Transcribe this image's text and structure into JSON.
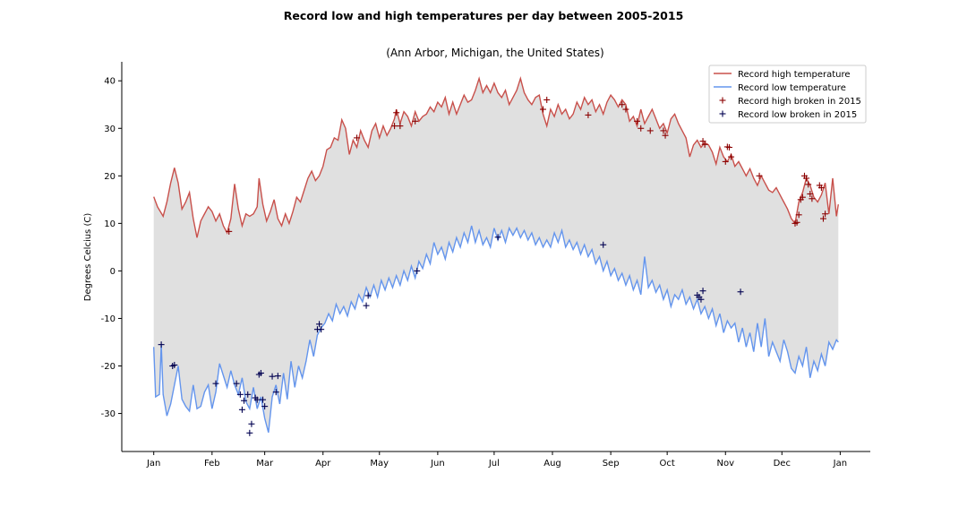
{
  "chart_data": {
    "type": "line",
    "title": "Record low and high temperatures per day between 2005-2015",
    "subtitle": "(Ann Arbor, Michigan, the United States)",
    "xlabel": "",
    "ylabel": "Degrees Celcius (C)",
    "ylim": [
      -38,
      44
    ],
    "yticks": [
      -30,
      -20,
      -10,
      0,
      10,
      20,
      30,
      40
    ],
    "xlim": [
      -17,
      381
    ],
    "xtick_positions": [
      0,
      31,
      59,
      90,
      120,
      151,
      181,
      212,
      243,
      273,
      304,
      334,
      365
    ],
    "xtick_labels": [
      "Jan",
      "Feb",
      "Mar",
      "Apr",
      "May",
      "Jun",
      "Jul",
      "Aug",
      "Sep",
      "Oct",
      "Nov",
      "Dec",
      "Jan"
    ],
    "legend": {
      "position": "top-right",
      "entries": [
        "Record high temperature",
        "Record low temperature",
        "Record high broken in 2015",
        "Record low broken in 2015"
      ]
    },
    "grid": false,
    "fill_between_color": "#e0e0e0",
    "colors": {
      "high": "#c8504b",
      "low": "#6495ed",
      "high_broken": "#8b0000",
      "low_broken": "#000050"
    },
    "high_series_keypoints": [
      [
        0,
        15.6
      ],
      [
        2,
        13.5
      ],
      [
        5,
        11.5
      ],
      [
        7,
        14.5
      ],
      [
        9,
        18.5
      ],
      [
        11,
        21.7
      ],
      [
        13,
        18.5
      ],
      [
        15,
        13
      ],
      [
        17,
        14.5
      ],
      [
        19,
        16.5
      ],
      [
        21,
        11
      ],
      [
        23,
        7
      ],
      [
        25,
        10.5
      ],
      [
        27,
        12
      ],
      [
        29,
        13.5
      ],
      [
        31,
        12.5
      ],
      [
        33,
        10.5
      ],
      [
        35,
        12
      ],
      [
        37,
        9.5
      ],
      [
        39,
        8
      ],
      [
        41,
        11
      ],
      [
        43,
        18.3
      ],
      [
        45,
        13
      ],
      [
        47,
        9.5
      ],
      [
        49,
        12
      ],
      [
        51,
        11.5
      ],
      [
        53,
        12
      ],
      [
        55,
        13.5
      ],
      [
        56,
        19.5
      ],
      [
        58,
        14
      ],
      [
        60,
        10.5
      ],
      [
        62,
        12.5
      ],
      [
        64,
        15
      ],
      [
        66,
        11
      ],
      [
        68,
        9.5
      ],
      [
        70,
        12
      ],
      [
        72,
        10
      ],
      [
        74,
        12.5
      ],
      [
        76,
        15.5
      ],
      [
        78,
        14.5
      ],
      [
        80,
        17
      ],
      [
        82,
        19.5
      ],
      [
        84,
        21
      ],
      [
        86,
        19
      ],
      [
        88,
        20
      ],
      [
        90,
        22
      ],
      [
        92,
        25.5
      ],
      [
        94,
        26
      ],
      [
        96,
        28
      ],
      [
        98,
        27.5
      ],
      [
        100,
        31.8
      ],
      [
        102,
        30
      ],
      [
        104,
        24.5
      ],
      [
        106,
        27.5
      ],
      [
        108,
        26
      ],
      [
        110,
        29.5
      ],
      [
        112,
        27.5
      ],
      [
        114,
        26
      ],
      [
        116,
        29.5
      ],
      [
        118,
        31
      ],
      [
        120,
        28
      ],
      [
        122,
        30.5
      ],
      [
        124,
        28.5
      ],
      [
        126,
        30
      ],
      [
        128,
        32
      ],
      [
        129,
        34
      ],
      [
        131,
        31
      ],
      [
        133,
        33.5
      ],
      [
        135,
        32.5
      ],
      [
        137,
        30.5
      ],
      [
        139,
        33.5
      ],
      [
        141,
        31.5
      ],
      [
        143,
        32.5
      ],
      [
        145,
        33
      ],
      [
        147,
        34.5
      ],
      [
        149,
        33.5
      ],
      [
        151,
        35.5
      ],
      [
        153,
        34.5
      ],
      [
        155,
        36.5
      ],
      [
        157,
        33
      ],
      [
        159,
        35.5
      ],
      [
        161,
        33
      ],
      [
        163,
        35
      ],
      [
        165,
        37
      ],
      [
        167,
        35.5
      ],
      [
        169,
        36
      ],
      [
        171,
        38
      ],
      [
        173,
        40.5
      ],
      [
        175,
        37.5
      ],
      [
        177,
        39
      ],
      [
        179,
        37.5
      ],
      [
        181,
        39.5
      ],
      [
        183,
        37.5
      ],
      [
        185,
        36.5
      ],
      [
        187,
        38
      ],
      [
        189,
        35
      ],
      [
        191,
        36.5
      ],
      [
        193,
        38
      ],
      [
        195,
        40.5
      ],
      [
        197,
        37.5
      ],
      [
        199,
        36
      ],
      [
        201,
        35
      ],
      [
        203,
        36.5
      ],
      [
        205,
        37
      ],
      [
        207,
        33
      ],
      [
        209,
        30.5
      ],
      [
        211,
        34
      ],
      [
        213,
        32.5
      ],
      [
        215,
        35
      ],
      [
        217,
        33
      ],
      [
        219,
        34
      ],
      [
        221,
        32
      ],
      [
        223,
        33
      ],
      [
        225,
        35.5
      ],
      [
        227,
        34
      ],
      [
        229,
        36.5
      ],
      [
        231,
        35
      ],
      [
        233,
        36
      ],
      [
        235,
        33.5
      ],
      [
        237,
        35
      ],
      [
        239,
        33
      ],
      [
        241,
        35.5
      ],
      [
        243,
        37
      ],
      [
        245,
        36
      ],
      [
        247,
        34.5
      ],
      [
        249,
        36
      ],
      [
        251,
        35
      ],
      [
        253,
        31.5
      ],
      [
        255,
        32.5
      ],
      [
        257,
        30.5
      ],
      [
        259,
        34
      ],
      [
        261,
        31
      ],
      [
        263,
        32.5
      ],
      [
        265,
        34
      ],
      [
        267,
        32
      ],
      [
        269,
        30
      ],
      [
        271,
        31
      ],
      [
        273,
        29
      ],
      [
        275,
        32
      ],
      [
        277,
        33
      ],
      [
        279,
        31
      ],
      [
        281,
        29.5
      ],
      [
        283,
        28
      ],
      [
        285,
        24
      ],
      [
        287,
        26.5
      ],
      [
        289,
        27.5
      ],
      [
        291,
        26
      ],
      [
        293,
        27
      ],
      [
        295,
        26.5
      ],
      [
        297,
        25
      ],
      [
        299,
        22.5
      ],
      [
        301,
        26
      ],
      [
        303,
        24
      ],
      [
        305,
        23
      ],
      [
        307,
        24.5
      ],
      [
        309,
        22
      ],
      [
        311,
        23
      ],
      [
        313,
        21.5
      ],
      [
        315,
        20
      ],
      [
        317,
        21.5
      ],
      [
        319,
        19.5
      ],
      [
        321,
        18
      ],
      [
        323,
        20
      ],
      [
        325,
        18.5
      ],
      [
        327,
        17
      ],
      [
        329,
        16.5
      ],
      [
        331,
        17.5
      ],
      [
        333,
        16
      ],
      [
        335,
        14.5
      ],
      [
        337,
        13
      ],
      [
        339,
        11
      ],
      [
        341,
        10
      ],
      [
        343,
        14.5
      ],
      [
        345,
        16.5
      ],
      [
        347,
        19.5
      ],
      [
        349,
        18
      ],
      [
        351,
        15.5
      ],
      [
        353,
        14.5
      ],
      [
        355,
        16
      ],
      [
        357,
        18.5
      ],
      [
        359,
        12
      ],
      [
        361,
        19.5
      ],
      [
        363,
        11.5
      ],
      [
        364,
        14
      ]
    ],
    "low_series_keypoints": [
      [
        0,
        -16
      ],
      [
        1,
        -26.5
      ],
      [
        3,
        -26
      ],
      [
        4,
        -15.5
      ],
      [
        5,
        -26
      ],
      [
        7,
        -30.5
      ],
      [
        9,
        -28
      ],
      [
        11,
        -24
      ],
      [
        13,
        -20
      ],
      [
        15,
        -27
      ],
      [
        17,
        -28.5
      ],
      [
        19,
        -29.5
      ],
      [
        21,
        -24
      ],
      [
        23,
        -29
      ],
      [
        25,
        -28.5
      ],
      [
        27,
        -25.5
      ],
      [
        29,
        -24
      ],
      [
        31,
        -29
      ],
      [
        33,
        -25.5
      ],
      [
        35,
        -19.5
      ],
      [
        37,
        -22
      ],
      [
        39,
        -24.5
      ],
      [
        41,
        -21
      ],
      [
        43,
        -24
      ],
      [
        45,
        -26
      ],
      [
        47,
        -22.5
      ],
      [
        49,
        -27.5
      ],
      [
        51,
        -29
      ],
      [
        53,
        -24.5
      ],
      [
        55,
        -29
      ],
      [
        57,
        -26.5
      ],
      [
        59,
        -31
      ],
      [
        61,
        -34
      ],
      [
        63,
        -26.5
      ],
      [
        65,
        -24
      ],
      [
        67,
        -28
      ],
      [
        69,
        -21.5
      ],
      [
        71,
        -27
      ],
      [
        73,
        -19
      ],
      [
        75,
        -24.5
      ],
      [
        77,
        -20
      ],
      [
        79,
        -22.5
      ],
      [
        81,
        -19
      ],
      [
        83,
        -14.5
      ],
      [
        85,
        -18
      ],
      [
        87,
        -13.5
      ],
      [
        89,
        -12
      ],
      [
        91,
        -11
      ],
      [
        93,
        -9
      ],
      [
        95,
        -10.5
      ],
      [
        97,
        -7
      ],
      [
        99,
        -9
      ],
      [
        101,
        -7.5
      ],
      [
        103,
        -9.5
      ],
      [
        105,
        -6.5
      ],
      [
        107,
        -8
      ],
      [
        109,
        -5
      ],
      [
        111,
        -6.5
      ],
      [
        113,
        -3.5
      ],
      [
        115,
        -5.5
      ],
      [
        117,
        -3
      ],
      [
        119,
        -5.5
      ],
      [
        121,
        -2
      ],
      [
        123,
        -4
      ],
      [
        125,
        -1.5
      ],
      [
        127,
        -3.5
      ],
      [
        129,
        -1
      ],
      [
        131,
        -3
      ],
      [
        133,
        0
      ],
      [
        135,
        -2
      ],
      [
        137,
        1
      ],
      [
        139,
        -1.5
      ],
      [
        141,
        2
      ],
      [
        143,
        0.5
      ],
      [
        145,
        3.5
      ],
      [
        147,
        1.5
      ],
      [
        149,
        6
      ],
      [
        151,
        3.5
      ],
      [
        153,
        5
      ],
      [
        155,
        2.5
      ],
      [
        157,
        6
      ],
      [
        159,
        4
      ],
      [
        161,
        7
      ],
      [
        163,
        5
      ],
      [
        165,
        8
      ],
      [
        167,
        6
      ],
      [
        169,
        9.5
      ],
      [
        171,
        6
      ],
      [
        173,
        8.5
      ],
      [
        175,
        5.5
      ],
      [
        177,
        7
      ],
      [
        179,
        5
      ],
      [
        181,
        9
      ],
      [
        183,
        6.5
      ],
      [
        185,
        8.5
      ],
      [
        187,
        6
      ],
      [
        189,
        9
      ],
      [
        191,
        7.5
      ],
      [
        193,
        9
      ],
      [
        195,
        7
      ],
      [
        197,
        8.5
      ],
      [
        199,
        6.5
      ],
      [
        201,
        8
      ],
      [
        203,
        5.5
      ],
      [
        205,
        7
      ],
      [
        207,
        5
      ],
      [
        209,
        6.5
      ],
      [
        211,
        5
      ],
      [
        213,
        8
      ],
      [
        215,
        6
      ],
      [
        217,
        8.5
      ],
      [
        219,
        5
      ],
      [
        221,
        6.5
      ],
      [
        223,
        4.5
      ],
      [
        225,
        6
      ],
      [
        227,
        3.5
      ],
      [
        229,
        5.5
      ],
      [
        231,
        3
      ],
      [
        233,
        4.5
      ],
      [
        235,
        1.5
      ],
      [
        237,
        3
      ],
      [
        239,
        0
      ],
      [
        241,
        2
      ],
      [
        243,
        -1
      ],
      [
        245,
        0.5
      ],
      [
        247,
        -2
      ],
      [
        249,
        -0.5
      ],
      [
        251,
        -3
      ],
      [
        253,
        -1
      ],
      [
        255,
        -4
      ],
      [
        257,
        -2
      ],
      [
        259,
        -5
      ],
      [
        261,
        3
      ],
      [
        263,
        -3.5
      ],
      [
        265,
        -2
      ],
      [
        267,
        -4.5
      ],
      [
        269,
        -3
      ],
      [
        271,
        -6
      ],
      [
        273,
        -4
      ],
      [
        275,
        -7.5
      ],
      [
        277,
        -5
      ],
      [
        279,
        -6
      ],
      [
        281,
        -4
      ],
      [
        283,
        -7
      ],
      [
        285,
        -5.5
      ],
      [
        287,
        -8
      ],
      [
        289,
        -6
      ],
      [
        291,
        -9
      ],
      [
        293,
        -7.5
      ],
      [
        295,
        -10
      ],
      [
        297,
        -8
      ],
      [
        299,
        -11.5
      ],
      [
        301,
        -9
      ],
      [
        303,
        -13
      ],
      [
        305,
        -10.5
      ],
      [
        307,
        -12
      ],
      [
        309,
        -11
      ],
      [
        311,
        -15
      ],
      [
        313,
        -12
      ],
      [
        315,
        -16
      ],
      [
        317,
        -13
      ],
      [
        319,
        -17
      ],
      [
        321,
        -11
      ],
      [
        323,
        -16
      ],
      [
        325,
        -10
      ],
      [
        327,
        -18
      ],
      [
        329,
        -15
      ],
      [
        331,
        -17
      ],
      [
        333,
        -19
      ],
      [
        335,
        -14.5
      ],
      [
        337,
        -17
      ],
      [
        339,
        -20.5
      ],
      [
        341,
        -21.5
      ],
      [
        343,
        -18
      ],
      [
        345,
        -20
      ],
      [
        347,
        -16
      ],
      [
        349,
        -22.5
      ],
      [
        351,
        -19
      ],
      [
        353,
        -21
      ],
      [
        355,
        -17.5
      ],
      [
        357,
        -20
      ],
      [
        359,
        -15
      ],
      [
        361,
        -16.5
      ],
      [
        363,
        -14.5
      ],
      [
        364,
        -15
      ]
    ],
    "high_broken_2015": [
      [
        40,
        8.3
      ],
      [
        108,
        28
      ],
      [
        128,
        30.5
      ],
      [
        129,
        33.3
      ],
      [
        131,
        30.5
      ],
      [
        139,
        31.5
      ],
      [
        207,
        34
      ],
      [
        209,
        36
      ],
      [
        231,
        32.8
      ],
      [
        249,
        35
      ],
      [
        251,
        34
      ],
      [
        257,
        31.5
      ],
      [
        259,
        30
      ],
      [
        264,
        29.5
      ],
      [
        271,
        29.5
      ],
      [
        272,
        28.5
      ],
      [
        292,
        27.3
      ],
      [
        293,
        26.6
      ],
      [
        304,
        23
      ],
      [
        305,
        26.1
      ],
      [
        306,
        26
      ],
      [
        307,
        24
      ],
      [
        322,
        20
      ],
      [
        341,
        10
      ],
      [
        342,
        10.2
      ],
      [
        343,
        11.8
      ],
      [
        344,
        15
      ],
      [
        345,
        15.5
      ],
      [
        346,
        20
      ],
      [
        347,
        19.5
      ],
      [
        348,
        18.2
      ],
      [
        349,
        16.2
      ],
      [
        350,
        15.2
      ],
      [
        354,
        18
      ],
      [
        355,
        17.5
      ],
      [
        356,
        11
      ],
      [
        357,
        12
      ]
    ],
    "low_broken_2015": [
      [
        4,
        -15.5
      ],
      [
        10,
        -20
      ],
      [
        11,
        -19.8
      ],
      [
        33,
        -23.7
      ],
      [
        44,
        -23.7
      ],
      [
        46,
        -26
      ],
      [
        47,
        -29.2
      ],
      [
        48,
        -27.3
      ],
      [
        50,
        -26
      ],
      [
        51,
        -34.1
      ],
      [
        52,
        -32.2
      ],
      [
        54,
        -26.7
      ],
      [
        55,
        -27.1
      ],
      [
        56,
        -21.8
      ],
      [
        57,
        -21.5
      ],
      [
        58,
        -27.1
      ],
      [
        59,
        -28.5
      ],
      [
        63,
        -22.2
      ],
      [
        65,
        -25.5
      ],
      [
        66,
        -22.1
      ],
      [
        87,
        -12.3
      ],
      [
        88,
        -11.2
      ],
      [
        89,
        -12.3
      ],
      [
        113,
        -7.3
      ],
      [
        114,
        -5.2
      ],
      [
        140,
        0
      ],
      [
        183,
        7.1
      ],
      [
        239,
        5.5
      ],
      [
        289,
        -5.1
      ],
      [
        290,
        -5.5
      ],
      [
        291,
        -6
      ],
      [
        292,
        -4.2
      ],
      [
        312,
        -4.4
      ]
    ]
  }
}
